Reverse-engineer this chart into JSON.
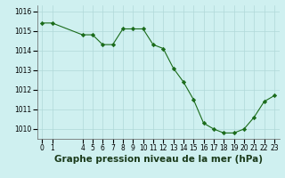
{
  "x": [
    0,
    1,
    4,
    5,
    6,
    7,
    8,
    9,
    10,
    11,
    12,
    13,
    14,
    15,
    16,
    17,
    18,
    19,
    20,
    21,
    22,
    23
  ],
  "y": [
    1015.4,
    1015.4,
    1014.8,
    1014.8,
    1014.3,
    1014.3,
    1015.1,
    1015.1,
    1015.1,
    1014.3,
    1014.1,
    1013.1,
    1012.4,
    1011.5,
    1010.3,
    1010.0,
    1009.8,
    1009.8,
    1010.0,
    1010.6,
    1011.4,
    1011.7
  ],
  "xlabel": "Graphe pression niveau de la mer (hPa)",
  "bg_color": "#cff0f0",
  "line_color": "#1a6b1a",
  "marker_color": "#1a6b1a",
  "grid_color": "#b0d8d8",
  "ylim_min": 1009.5,
  "ylim_max": 1016.3,
  "yticks": [
    1010,
    1011,
    1012,
    1013,
    1014,
    1015,
    1016
  ],
  "xticks": [
    0,
    1,
    4,
    5,
    6,
    7,
    8,
    9,
    10,
    11,
    12,
    13,
    14,
    15,
    16,
    17,
    18,
    19,
    20,
    21,
    22,
    23
  ],
  "tick_label_fontsize": 5.5,
  "xlabel_fontsize": 7.5
}
